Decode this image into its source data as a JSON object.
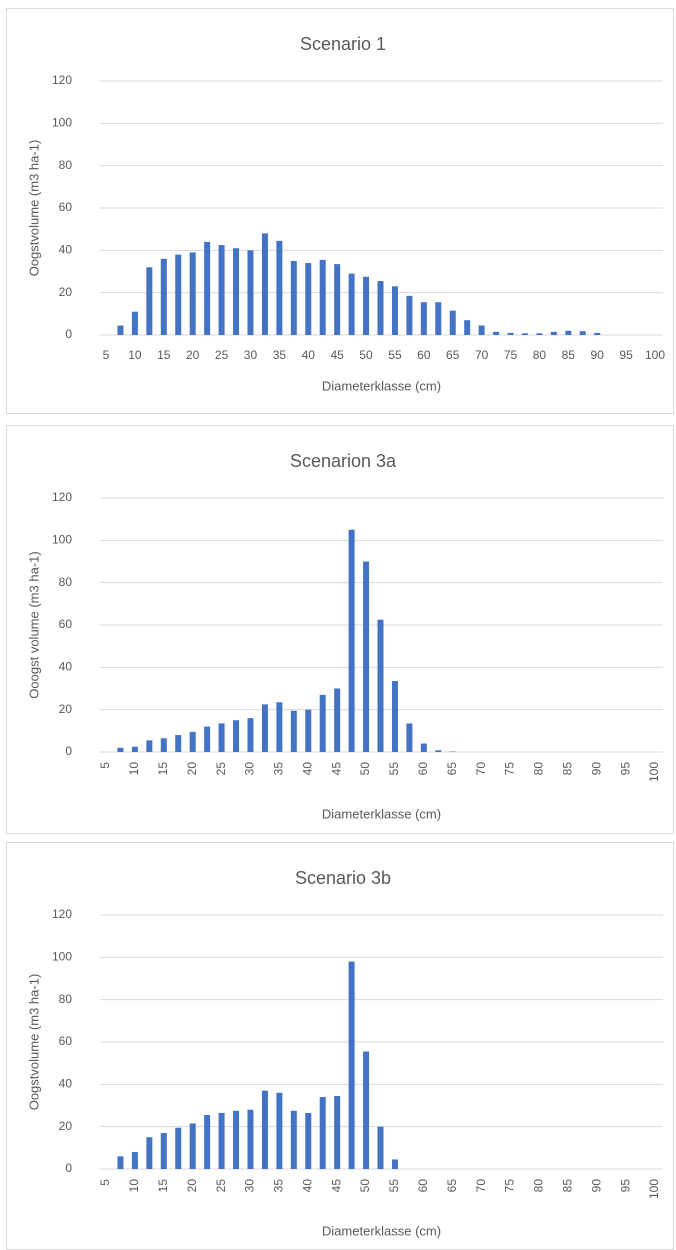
{
  "chart_data": [
    {
      "type": "bar",
      "title": "Scenario 1",
      "x_label": "Diameterklasse (cm)",
      "y_label": "Oogstvolume (m3 ha-1)",
      "x_label_rotation": 0,
      "color": "#4472c4",
      "grid": true,
      "categories": [
        "5",
        null,
        "10",
        null,
        "15",
        null,
        "20",
        null,
        "25",
        null,
        "30",
        null,
        "35",
        null,
        "40",
        null,
        "45",
        null,
        "50",
        null,
        "55",
        null,
        "60",
        null,
        "65",
        null,
        "70",
        null,
        "75",
        null,
        "80",
        null,
        "85",
        null,
        "90",
        null,
        "95",
        null,
        "100"
      ],
      "values": [
        0,
        4.5,
        11,
        32,
        36,
        38,
        39,
        44,
        42.5,
        41,
        40,
        48,
        44.5,
        35,
        34,
        35.5,
        33.5,
        29,
        27.5,
        25.5,
        23,
        18.5,
        15.5,
        15.5,
        11.5,
        7,
        4.5,
        1.5,
        1,
        0.8,
        0.8,
        1.5,
        2,
        1.8,
        1,
        0,
        0,
        0,
        0
      ],
      "ylim": [
        0,
        120
      ],
      "yticks": [
        0,
        20,
        40,
        60,
        80,
        100,
        120
      ]
    },
    {
      "type": "bar",
      "title": "Scenarion 3a",
      "x_label": "Diameterklasse (cm)",
      "y_label": "Ooogst volume (m3 ha-1)",
      "x_label_rotation": -90,
      "color": "#4472c4",
      "grid": true,
      "categories": [
        "5",
        null,
        "10",
        null,
        "15",
        null,
        "20",
        null,
        "25",
        null,
        "30",
        null,
        "35",
        null,
        "40",
        null,
        "45",
        null,
        "50",
        null,
        "55",
        null,
        "60",
        null,
        "65",
        null,
        "70",
        null,
        "75",
        null,
        "80",
        null,
        "85",
        null,
        "90",
        null,
        "95",
        null,
        "100"
      ],
      "values": [
        0,
        2,
        2.5,
        5.5,
        6.5,
        8,
        9.5,
        12,
        13.5,
        15,
        16,
        22.5,
        23.5,
        19.5,
        20,
        27,
        30,
        105,
        90,
        62.5,
        33.5,
        13.5,
        4,
        0.8,
        0.2,
        0,
        0,
        0,
        0,
        0,
        0,
        0,
        0,
        0,
        0,
        0,
        0,
        0,
        0
      ],
      "ylim": [
        0,
        120
      ],
      "yticks": [
        0,
        20,
        40,
        60,
        80,
        100,
        120
      ]
    },
    {
      "type": "bar",
      "title": "Scenario 3b",
      "x_label": "Diameterklasse (cm)",
      "y_label": "Oogstvolume (m3 ha-1)",
      "x_label_rotation": -90,
      "color": "#4472c4",
      "grid": true,
      "categories": [
        "5",
        null,
        "10",
        null,
        "15",
        null,
        "20",
        null,
        "25",
        null,
        "30",
        null,
        "35",
        null,
        "40",
        null,
        "45",
        null,
        "50",
        null,
        "55",
        null,
        "60",
        null,
        "65",
        null,
        "70",
        null,
        "75",
        null,
        "80",
        null,
        "85",
        null,
        "90",
        null,
        "95",
        null,
        "100"
      ],
      "values": [
        0,
        6,
        8,
        15,
        17,
        19.5,
        21.5,
        25.5,
        26.5,
        27.5,
        28,
        37,
        36,
        27.5,
        26.5,
        34,
        34.5,
        98,
        55.5,
        20,
        4.5,
        0,
        0,
        0,
        0,
        0,
        0,
        0,
        0,
        0,
        0,
        0,
        0,
        0,
        0,
        0,
        0,
        0,
        0
      ],
      "ylim": [
        0,
        120
      ],
      "yticks": [
        0,
        20,
        40,
        60,
        80,
        100,
        120
      ]
    }
  ]
}
